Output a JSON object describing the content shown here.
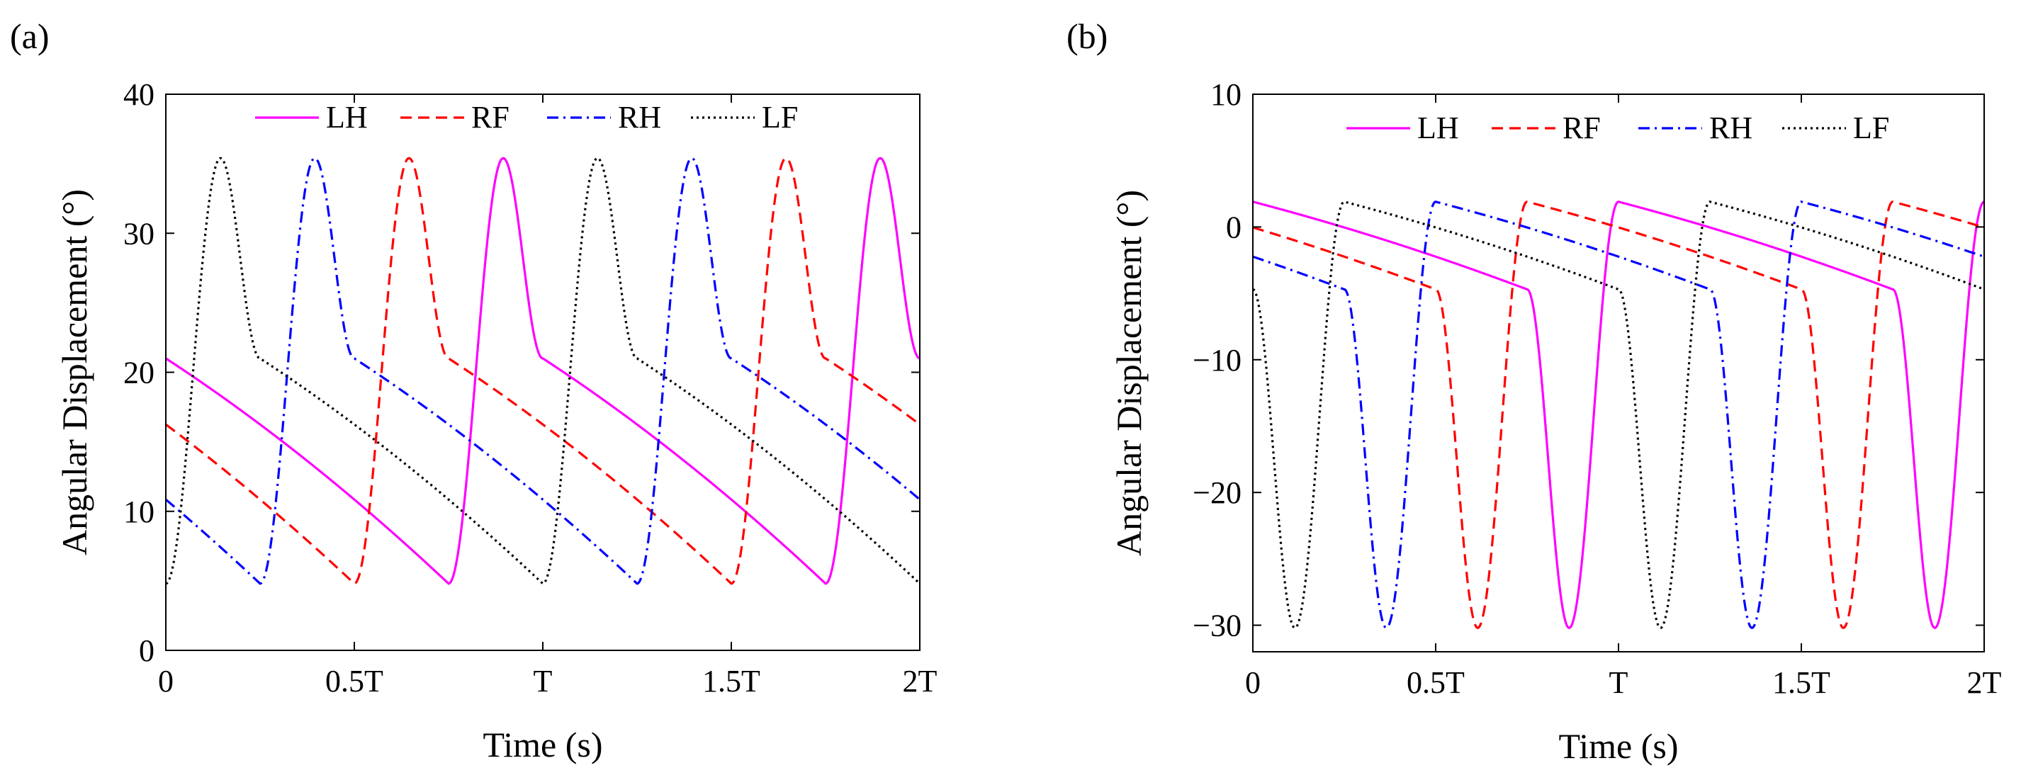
{
  "chart_data": [
    {
      "type": "line",
      "panel_label": "(a)",
      "xlabel": "Time (s)",
      "ylabel": "Angular Displacement (°)",
      "xlim": [
        0,
        2
      ],
      "ylim": [
        0,
        40
      ],
      "xticks": [
        0,
        0.5,
        1,
        1.5,
        2
      ],
      "xtick_labels": [
        "0",
        "0.5T",
        "T",
        "1.5T",
        "2T"
      ],
      "yticks": [
        0,
        10,
        20,
        30,
        40
      ],
      "ytick_labels": [
        "0",
        "10",
        "20",
        "30",
        "40"
      ],
      "legend_position": "top",
      "waveform": {
        "stance_fraction": 0.75,
        "peak_phase": 0.895,
        "stance_start_value": 21.0,
        "stance_end_value": 4.8,
        "peak_value": 35.4
      },
      "series": [
        {
          "name": "LH",
          "color": "#ff00ff",
          "style": "solid",
          "phase_offset": 0.0
        },
        {
          "name": "RF",
          "color": "#ff0000",
          "style": "dashed",
          "phase_offset": 0.25
        },
        {
          "name": "RH",
          "color": "#0000ff",
          "style": "dashdot",
          "phase_offset": 0.5
        },
        {
          "name": "LF",
          "color": "#000000",
          "style": "dotted",
          "phase_offset": 0.75
        }
      ]
    },
    {
      "type": "line",
      "panel_label": "(b)",
      "xlabel": "Time (s)",
      "ylabel": "Angular Displacement (°)",
      "xlim": [
        0,
        2
      ],
      "ylim": [
        -32,
        10
      ],
      "xticks": [
        0,
        0.5,
        1,
        1.5,
        2
      ],
      "xtick_labels": [
        "0",
        "0.5T",
        "T",
        "1.5T",
        "2T"
      ],
      "yticks": [
        -30,
        -20,
        -10,
        0,
        10
      ],
      "ytick_labels": [
        "−30",
        "−20",
        "−10",
        "0",
        "10"
      ],
      "legend_position": "top",
      "waveform": {
        "stance_fraction": 0.75,
        "peak_phase": 0.865,
        "stance_start_value": 1.9,
        "stance_end_value": -4.7,
        "peak_value": -30.2
      },
      "series": [
        {
          "name": "LH",
          "color": "#ff00ff",
          "style": "solid",
          "phase_offset": 0.0
        },
        {
          "name": "RF",
          "color": "#ff0000",
          "style": "dashed",
          "phase_offset": 0.25
        },
        {
          "name": "RH",
          "color": "#0000ff",
          "style": "dashdot",
          "phase_offset": 0.5
        },
        {
          "name": "LF",
          "color": "#000000",
          "style": "dotted",
          "phase_offset": 0.75
        }
      ]
    }
  ]
}
